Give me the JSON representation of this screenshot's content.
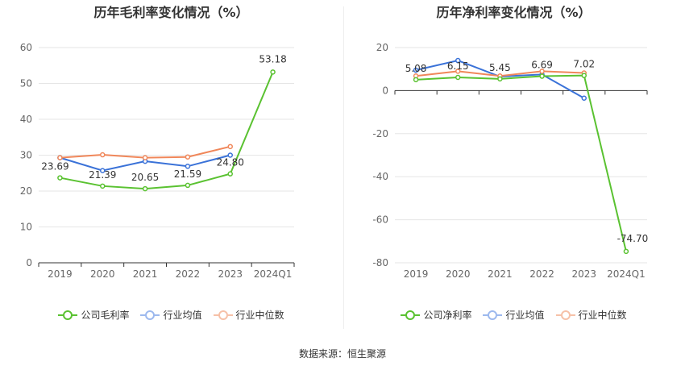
{
  "chart_data": [
    {
      "type": "line",
      "title": "历年毛利率变化情况（%）",
      "categories": [
        "2019",
        "2020",
        "2021",
        "2022",
        "2023",
        "2024Q1"
      ],
      "ylim": [
        0,
        60
      ],
      "yticks": [
        0,
        10,
        20,
        30,
        40,
        50,
        60
      ],
      "series": [
        {
          "name": "公司毛利率",
          "color": "#5ac231",
          "values": [
            23.69,
            21.39,
            20.65,
            21.59,
            24.8,
            53.18
          ],
          "labels": [
            "23.69",
            "21.39",
            "20.65",
            "21.59",
            "24.80",
            "53.18"
          ]
        },
        {
          "name": "行业均值",
          "color": "#3a72d8",
          "values": [
            29.3,
            25.7,
            28.3,
            26.9,
            30.0,
            null
          ],
          "labels": []
        },
        {
          "name": "行业中位数",
          "color": "#f0875a",
          "values": [
            29.3,
            30.1,
            29.3,
            29.5,
            32.4,
            null
          ],
          "labels": []
        }
      ]
    },
    {
      "type": "line",
      "title": "历年净利率变化情况（%）",
      "categories": [
        "2019",
        "2020",
        "2021",
        "2022",
        "2023",
        "2024Q1"
      ],
      "ylim": [
        -80,
        20
      ],
      "yticks": [
        -80,
        -60,
        -40,
        -20,
        0,
        20
      ],
      "series": [
        {
          "name": "公司净利率",
          "color": "#5ac231",
          "values": [
            5.08,
            6.15,
            5.45,
            6.69,
            7.02,
            -74.7
          ],
          "labels": [
            "5.08",
            "6.15",
            "5.45",
            "6.69",
            "7.02",
            "-74.70"
          ]
        },
        {
          "name": "行业均值",
          "color": "#3a72d8",
          "values": [
            9.5,
            14.0,
            6.5,
            7.5,
            -3.5,
            null
          ],
          "labels": []
        },
        {
          "name": "行业中位数",
          "color": "#f0875a",
          "values": [
            6.8,
            9.0,
            6.8,
            9.0,
            8.2,
            null
          ],
          "labels": []
        }
      ]
    }
  ],
  "legend_left": [
    "公司毛利率",
    "行业均值",
    "行业中位数"
  ],
  "legend_right": [
    "公司净利率",
    "行业均值",
    "行业中位数"
  ],
  "source": "数据来源：恒生聚源",
  "colors": {
    "company": "#5ac231",
    "mean": "#3a72d8",
    "median": "#f0875a",
    "mean_legend": "#9db9ee",
    "median_legend": "#f6c1a8"
  }
}
